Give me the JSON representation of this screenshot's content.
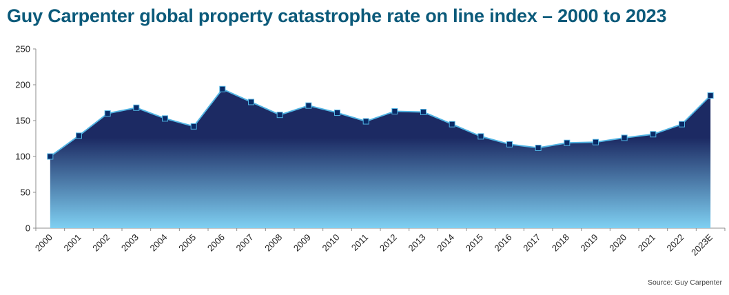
{
  "title": "Guy Carpenter global property catastrophe rate on line index – 2000 to 2023",
  "source": "Source: Guy Carpenter",
  "colors": {
    "title": "#0b5a7a",
    "area_top": "#1c2a63",
    "area_bottom": "#7fd0f2",
    "line": "#52b4e3",
    "marker": "#0a2a66"
  },
  "chart_data": {
    "type": "area",
    "title": "Guy Carpenter global property catastrophe rate on line index – 2000 to 2023",
    "xlabel": "",
    "ylabel": "",
    "ylim": [
      0,
      250
    ],
    "yticks": [
      0,
      50,
      100,
      150,
      200,
      250
    ],
    "grid": false,
    "categories": [
      "2000",
      "2001",
      "2002",
      "2003",
      "2004",
      "2005",
      "2006",
      "2007",
      "2008",
      "2009",
      "2010",
      "2011",
      "2012",
      "2013",
      "2014",
      "2015",
      "2016",
      "2017",
      "2018",
      "2019",
      "2020",
      "2021",
      "2022",
      "2023E"
    ],
    "values": [
      100,
      129,
      160,
      168,
      153,
      142,
      194,
      176,
      158,
      171,
      161,
      149,
      163,
      162,
      145,
      128,
      117,
      112,
      119,
      120,
      126,
      131,
      145,
      185
    ]
  }
}
